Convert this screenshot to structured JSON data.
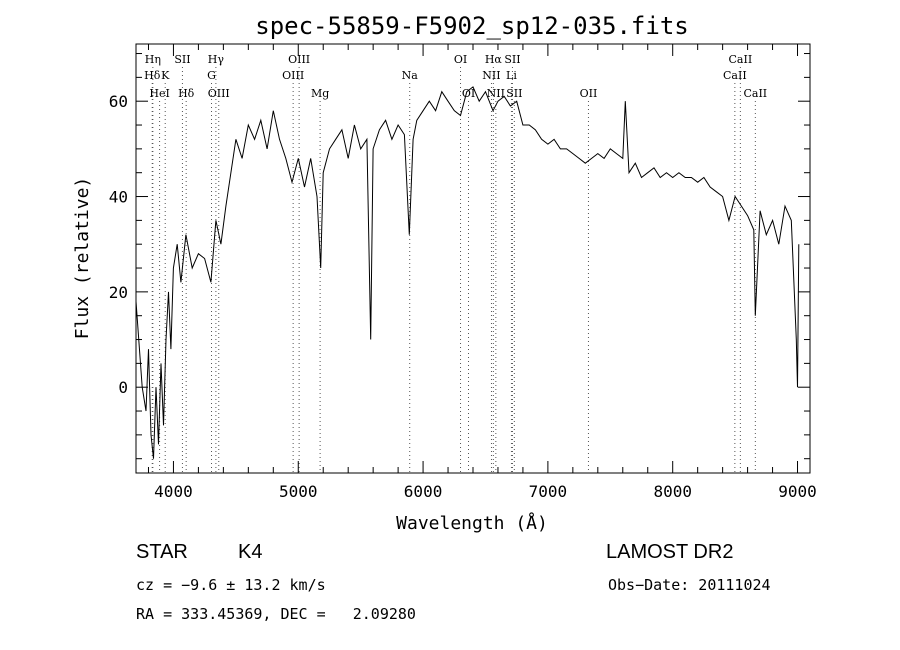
{
  "chart_data": {
    "type": "line",
    "title": "spec-55859-F5902_sp12-035.fits",
    "xlabel": "Wavelength (Å)",
    "ylabel": "Flux (relative)",
    "xlim": [
      3700,
      9100
    ],
    "ylim": [
      -18,
      72
    ],
    "xticks": [
      "4000",
      "5000",
      "6000",
      "7000",
      "8000",
      "9000"
    ],
    "yticks": [
      "0",
      "20",
      "40",
      "60"
    ],
    "grid": false,
    "series": [
      {
        "x": [
          3700,
          3750,
          3780,
          3800,
          3820,
          3840,
          3860,
          3880,
          3900,
          3920,
          3940,
          3960,
          3980,
          4000,
          4030,
          4060,
          4100,
          4150,
          4200,
          4250,
          4300,
          4340,
          4380,
          4420,
          4460,
          4500,
          4550,
          4600,
          4650,
          4700,
          4750,
          4800,
          4850,
          4900,
          4950,
          5000,
          5050,
          5100,
          5150,
          5180,
          5200,
          5250,
          5300,
          5350,
          5400,
          5450,
          5500,
          5550,
          5580,
          5600,
          5650,
          5700,
          5750,
          5800,
          5850,
          5890,
          5920,
          5950,
          6000,
          6050,
          6100,
          6150,
          6200,
          6250,
          6300,
          6350,
          6400,
          6450,
          6500,
          6560,
          6600,
          6650,
          6700,
          6750,
          6800,
          6850,
          6900,
          6950,
          7000,
          7050,
          7100,
          7150,
          7200,
          7250,
          7300,
          7350,
          7400,
          7450,
          7500,
          7550,
          7600,
          7620,
          7650,
          7700,
          7750,
          7800,
          7850,
          7900,
          7950,
          8000,
          8050,
          8100,
          8150,
          8200,
          8250,
          8300,
          8350,
          8400,
          8450,
          8500,
          8550,
          8600,
          8650,
          8662,
          8700,
          8750,
          8800,
          8850,
          8900,
          8950,
          8990,
          9000,
          9010
        ],
        "y": [
          18,
          0,
          -5,
          8,
          -10,
          -15,
          0,
          -12,
          5,
          -8,
          10,
          20,
          8,
          25,
          30,
          22,
          32,
          25,
          28,
          27,
          22,
          35,
          30,
          38,
          45,
          52,
          48,
          55,
          52,
          56,
          50,
          58,
          52,
          48,
          43,
          48,
          42,
          48,
          40,
          25,
          45,
          50,
          52,
          54,
          48,
          55,
          50,
          52,
          10,
          50,
          54,
          56,
          52,
          55,
          53,
          32,
          52,
          56,
          58,
          60,
          58,
          62,
          60,
          58,
          57,
          62,
          63,
          60,
          62,
          58,
          60,
          61,
          59,
          60,
          55,
          55,
          54,
          52,
          51,
          52,
          50,
          50,
          49,
          48,
          47,
          48,
          49,
          48,
          50,
          49,
          48,
          60,
          45,
          47,
          44,
          45,
          46,
          44,
          45,
          44,
          45,
          44,
          44,
          43,
          44,
          42,
          41,
          40,
          35,
          40,
          38,
          36,
          33,
          15,
          37,
          32,
          35,
          30,
          38,
          35,
          10,
          0,
          30
        ]
      }
    ],
    "annotations": [
      {
        "label": "Hη",
        "x": 3835,
        "row": 1
      },
      {
        "label": "Hδ",
        "x": 3830,
        "row": 2
      },
      {
        "label": "K",
        "x": 3934,
        "row": 2
      },
      {
        "label": "HeI",
        "x": 3889,
        "row": 3
      },
      {
        "label": "SII",
        "x": 4072,
        "row": 1
      },
      {
        "label": "Hδ",
        "x": 4102,
        "row": 3
      },
      {
        "label": "Hγ",
        "x": 4340,
        "row": 1
      },
      {
        "label": "G",
        "x": 4305,
        "row": 2
      },
      {
        "label": "OIII",
        "x": 4363,
        "row": 3
      },
      {
        "label": "OIII",
        "x": 5007,
        "row": 1
      },
      {
        "label": "OIII",
        "x": 4959,
        "row": 2
      },
      {
        "label": "Mg",
        "x": 5175,
        "row": 3
      },
      {
        "label": "Na",
        "x": 5893,
        "row": 2
      },
      {
        "label": "OI",
        "x": 6300,
        "row": 1
      },
      {
        "label": "OI",
        "x": 6364,
        "row": 3
      },
      {
        "label": "Hα",
        "x": 6563,
        "row": 1
      },
      {
        "label": "SII",
        "x": 6716,
        "row": 1
      },
      {
        "label": "NII",
        "x": 6548,
        "row": 2
      },
      {
        "label": "Li",
        "x": 6708,
        "row": 2
      },
      {
        "label": "NII",
        "x": 6583,
        "row": 3
      },
      {
        "label": "SII",
        "x": 6731,
        "row": 3
      },
      {
        "label": "OII",
        "x": 7325,
        "row": 3
      },
      {
        "label": "CaII",
        "x": 8542,
        "row": 1
      },
      {
        "label": "CaII",
        "x": 8498,
        "row": 2
      },
      {
        "label": "CaII",
        "x": 8662,
        "row": 3
      }
    ]
  },
  "info": {
    "class": "STAR",
    "subclass": "K4",
    "survey": "LAMOST DR2",
    "cz": "cz = −9.6 ± 13.2 km/s",
    "obsdate": "Obs−Date: 20111024",
    "radec": "RA = 333.45369, DEC =   2.09280"
  }
}
